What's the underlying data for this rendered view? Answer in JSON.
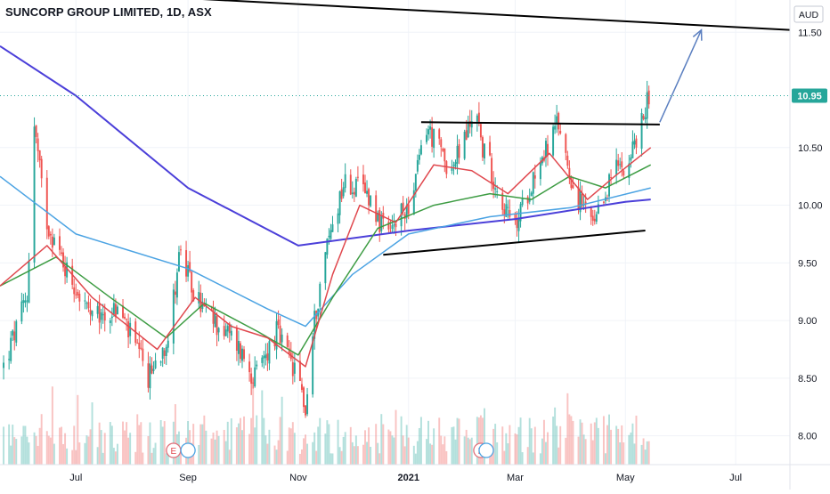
{
  "header": {
    "title": "SUNCORP GROUP LIMITED, 1D, ASX"
  },
  "chart_data": {
    "type": "candlestick",
    "currency": "AUD",
    "last_price": "10.95",
    "y_ticks": [
      "11.50",
      "10.50",
      "10.00",
      "9.50",
      "9.00",
      "8.50",
      "8.00"
    ],
    "ylim": [
      7.75,
      11.78
    ],
    "x_ticks": [
      "Jul",
      "Sep",
      "Nov",
      "2021",
      "Mar",
      "May",
      "Jul"
    ],
    "xlim": [
      "2020-05-20",
      "2021-07-31"
    ],
    "x_tick_dates": [
      "2020-07-01",
      "2020-09-01",
      "2020-11-01",
      "2021-01-01",
      "2021-03-01",
      "2021-05-01",
      "2021-07-01"
    ],
    "price_anchors": [
      {
        "date": "2020-05-22",
        "close": 8.6
      },
      {
        "date": "2020-06-04",
        "close": 9.2
      },
      {
        "date": "2020-06-08",
        "close": 10.7
      },
      {
        "date": "2020-06-14",
        "close": 9.9
      },
      {
        "date": "2020-06-24",
        "close": 9.5
      },
      {
        "date": "2020-07-10",
        "close": 9.0
      },
      {
        "date": "2020-07-25",
        "close": 9.1
      },
      {
        "date": "2020-08-10",
        "close": 8.5
      },
      {
        "date": "2020-08-22",
        "close": 8.9
      },
      {
        "date": "2020-08-27",
        "close": 9.6
      },
      {
        "date": "2020-09-05",
        "close": 9.2
      },
      {
        "date": "2020-09-15",
        "close": 9.0
      },
      {
        "date": "2020-09-28",
        "close": 8.8
      },
      {
        "date": "2020-10-08",
        "close": 8.5
      },
      {
        "date": "2020-10-20",
        "close": 8.9
      },
      {
        "date": "2020-11-03",
        "close": 8.4
      },
      {
        "date": "2020-11-05",
        "close": 8.2
      },
      {
        "date": "2020-11-10",
        "close": 9.0
      },
      {
        "date": "2020-11-16",
        "close": 9.6
      },
      {
        "date": "2020-11-26",
        "close": 10.2
      },
      {
        "date": "2020-12-10",
        "close": 10.1
      },
      {
        "date": "2020-12-20",
        "close": 9.7
      },
      {
        "date": "2021-01-04",
        "close": 10.1
      },
      {
        "date": "2021-01-10",
        "close": 10.7
      },
      {
        "date": "2021-01-25",
        "close": 10.3
      },
      {
        "date": "2021-02-08",
        "close": 10.85
      },
      {
        "date": "2021-02-10",
        "close": 10.55
      },
      {
        "date": "2021-02-25",
        "close": 9.9
      },
      {
        "date": "2021-03-01",
        "close": 9.8
      },
      {
        "date": "2021-03-12",
        "close": 10.3
      },
      {
        "date": "2021-03-25",
        "close": 10.7
      },
      {
        "date": "2021-04-03",
        "close": 10.1
      },
      {
        "date": "2021-04-14",
        "close": 9.8
      },
      {
        "date": "2021-04-24",
        "close": 10.3
      },
      {
        "date": "2021-05-03",
        "close": 10.4
      },
      {
        "date": "2021-05-10",
        "close": 10.7
      },
      {
        "date": "2021-05-14",
        "close": 10.95
      }
    ],
    "moving_averages": [
      {
        "color": "#4b3fd9",
        "points": [
          [
            "2020-05-20",
            11.38
          ],
          [
            "2020-07-01",
            10.95
          ],
          [
            "2020-09-01",
            10.15
          ],
          [
            "2020-11-01",
            9.65
          ],
          [
            "2021-01-01",
            9.78
          ],
          [
            "2021-03-01",
            9.88
          ],
          [
            "2021-05-01",
            10.03
          ],
          [
            "2021-05-15",
            10.05
          ]
        ]
      },
      {
        "color": "#4ba3e3",
        "points": [
          [
            "2020-05-20",
            10.25
          ],
          [
            "2020-07-01",
            9.75
          ],
          [
            "2020-09-01",
            9.45
          ],
          [
            "2020-10-15",
            9.1
          ],
          [
            "2020-11-05",
            8.95
          ],
          [
            "2020-12-01",
            9.4
          ],
          [
            "2021-01-01",
            9.75
          ],
          [
            "2021-02-15",
            9.9
          ],
          [
            "2021-04-01",
            9.98
          ],
          [
            "2021-05-15",
            10.15
          ]
        ]
      },
      {
        "color": "#3d9c43",
        "points": [
          [
            "2020-05-20",
            9.3
          ],
          [
            "2020-06-20",
            9.55
          ],
          [
            "2020-07-20",
            9.2
          ],
          [
            "2020-08-20",
            8.85
          ],
          [
            "2020-09-10",
            9.15
          ],
          [
            "2020-10-10",
            8.9
          ],
          [
            "2020-11-01",
            8.7
          ],
          [
            "2020-11-20",
            9.2
          ],
          [
            "2020-12-15",
            9.8
          ],
          [
            "2021-01-15",
            10.0
          ],
          [
            "2021-02-15",
            10.1
          ],
          [
            "2021-03-10",
            10.05
          ],
          [
            "2021-03-31",
            10.25
          ],
          [
            "2021-04-20",
            10.15
          ],
          [
            "2021-05-15",
            10.35
          ]
        ]
      },
      {
        "color": "#e0484e",
        "points": [
          [
            "2020-05-20",
            9.3
          ],
          [
            "2020-06-15",
            9.65
          ],
          [
            "2020-07-10",
            9.2
          ],
          [
            "2020-08-15",
            8.75
          ],
          [
            "2020-09-05",
            9.2
          ],
          [
            "2020-09-25",
            8.95
          ],
          [
            "2020-10-15",
            8.85
          ],
          [
            "2020-11-05",
            8.6
          ],
          [
            "2020-11-20",
            9.4
          ],
          [
            "2020-12-05",
            10.0
          ],
          [
            "2020-12-25",
            9.85
          ],
          [
            "2021-01-15",
            10.35
          ],
          [
            "2021-02-05",
            10.3
          ],
          [
            "2021-02-25",
            10.1
          ],
          [
            "2021-03-20",
            10.45
          ],
          [
            "2021-04-10",
            10.05
          ],
          [
            "2021-04-25",
            10.25
          ],
          [
            "2021-05-15",
            10.5
          ]
        ]
      }
    ],
    "trendlines": [
      {
        "from": [
          "2020-05-20",
          11.88
        ],
        "to": [
          "2021-07-31",
          11.52
        ],
        "color": "#000000"
      },
      {
        "from": [
          "2021-01-08",
          10.72
        ],
        "to": [
          "2021-05-20",
          10.7
        ],
        "color": "#000000"
      },
      {
        "from": [
          "2020-12-18",
          9.57
        ],
        "to": [
          "2021-05-12",
          9.78
        ],
        "color": "#000000"
      }
    ],
    "projection_arrow": {
      "from": [
        "2021-05-20",
        10.72
      ],
      "to": [
        "2021-06-12",
        11.52
      ],
      "color": "#5b7fc0"
    },
    "earnings_markers": [
      {
        "date": "2020-08-24",
        "label": "E"
      },
      {
        "date": "2021-02-10",
        "label": "E"
      }
    ],
    "dividend_markers": [
      {
        "date": "2020-09-01"
      },
      {
        "date": "2021-02-13"
      }
    ]
  }
}
